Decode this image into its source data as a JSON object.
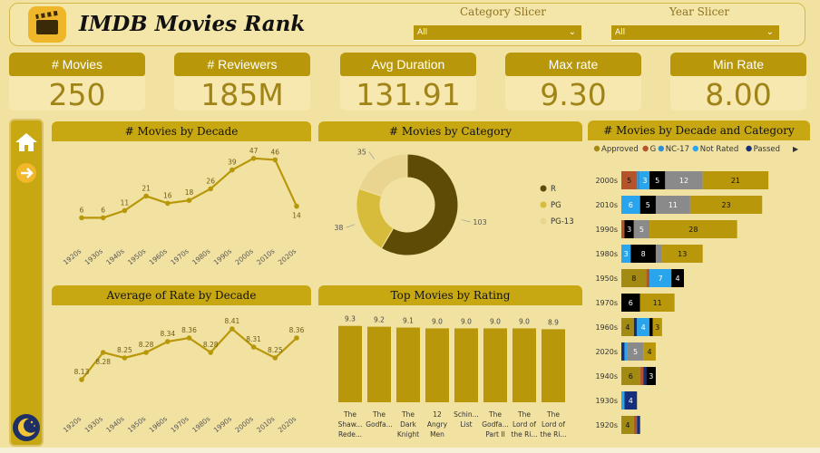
{
  "header": {
    "title": "IMDB Movies Rank"
  },
  "slicers": [
    {
      "label": "Category Slicer",
      "value": "All"
    },
    {
      "label": "Year Slicer",
      "value": "All"
    }
  ],
  "kpis": [
    {
      "label": "# Movies",
      "value": "250"
    },
    {
      "label": "# Reviewers",
      "value": "185M"
    },
    {
      "label": "Avg Duration",
      "value": "131.91"
    },
    {
      "label": "Max rate",
      "value": "9.30"
    },
    {
      "label": "Min Rate",
      "value": "8.00"
    }
  ],
  "colors": {
    "gold": "#b8980a",
    "dark": "#5c4a06",
    "light": "#e8d374"
  },
  "chart_data": [
    {
      "id": "movies_by_decade",
      "type": "line",
      "title": "# Movies by Decade",
      "categories": [
        "1920s",
        "1930s",
        "1940s",
        "1950s",
        "1960s",
        "1970s",
        "1980s",
        "1990s",
        "2000s",
        "2010s",
        "2020s"
      ],
      "values": [
        6,
        6,
        11,
        21,
        16,
        18,
        26,
        39,
        47,
        46,
        14
      ],
      "ylim": [
        0,
        50
      ]
    },
    {
      "id": "movies_by_category",
      "type": "pie",
      "title": "# Movies by Category",
      "labels": [
        "R",
        "PG",
        "PG-13"
      ],
      "values": [
        103,
        38,
        35
      ],
      "colors": [
        "#5e4b06",
        "#d6bc3a",
        "#ead590"
      ]
    },
    {
      "id": "avg_rate_by_decade",
      "type": "line",
      "title": "Average of Rate by Decade",
      "categories": [
        "1920s",
        "1930s",
        "1940s",
        "1950s",
        "1960s",
        "1970s",
        "1980s",
        "1990s",
        "2000s",
        "2010s",
        "2020s"
      ],
      "values": [
        8.13,
        8.28,
        8.25,
        8.28,
        8.34,
        8.36,
        8.28,
        8.41,
        8.31,
        8.25,
        8.36
      ],
      "ylim": [
        8.05,
        8.45
      ]
    },
    {
      "id": "top_movies_by_rating",
      "type": "bar",
      "title": "Top Movies by Rating",
      "categories": [
        "The Shaw... Rede...",
        "The Godfa...",
        "The Dark Knight",
        "12 Angry Men",
        "Schin... List",
        "The Godfa... Part II",
        "The Lord of the Ri...",
        "The Lord of the Ri..."
      ],
      "category_lines": [
        [
          "The",
          "Shaw...",
          "Rede..."
        ],
        [
          "The",
          "Godfa..."
        ],
        [
          "The",
          "Dark",
          "Knight"
        ],
        [
          "12",
          "Angry",
          "Men"
        ],
        [
          "Schin...",
          "List"
        ],
        [
          "The",
          "Godfa...",
          "Part II"
        ],
        [
          "The",
          "Lord of",
          "the Ri..."
        ],
        [
          "The",
          "Lord of",
          "the Ri..."
        ]
      ],
      "values": [
        9.3,
        9.2,
        9.1,
        9.0,
        9.0,
        9.0,
        9.0,
        8.9
      ],
      "value_labels": [
        "9.3",
        "9.2",
        "9.1",
        "9.0",
        "9.0",
        "9.0",
        "9.0",
        "8.9"
      ],
      "ylim": [
        0,
        9.6
      ]
    },
    {
      "id": "movies_by_decade_and_category",
      "type": "bar",
      "orientation": "horizontal",
      "stacked": true,
      "title": "# Movies by Decade and Category",
      "legend": [
        {
          "name": "Approved",
          "color": "#a38a12"
        },
        {
          "name": "G",
          "color": "#b5532b"
        },
        {
          "name": "NC-17",
          "color": "#2f8fd0"
        },
        {
          "name": "Not Rated",
          "color": "#29a5ee"
        },
        {
          "name": "Passed",
          "color": "#152f7c"
        }
      ],
      "categories": [
        "2000s",
        "2010s",
        "1990s",
        "1980s",
        "1950s",
        "1970s",
        "1960s",
        "2020s",
        "1940s",
        "1930s",
        "1920s"
      ],
      "rows": [
        {
          "decade": "2000s",
          "segments": [
            {
              "v": 5,
              "c": "#b5532b",
              "label": "5"
            },
            {
              "v": 1,
              "c": "#2f8fd0",
              "label": ""
            },
            {
              "v": 3,
              "c": "#29a5ee",
              "label": "3"
            },
            {
              "v": 5,
              "c": "#000000",
              "label": "5"
            },
            {
              "v": 12,
              "c": "#8a8a8a",
              "label": "12"
            },
            {
              "v": 21,
              "c": "#b8980a",
              "label": "21"
            }
          ]
        },
        {
          "decade": "2010s",
          "segments": [
            {
              "v": 6,
              "c": "#29a5ee",
              "label": "6"
            },
            {
              "v": 5,
              "c": "#000000",
              "label": "5"
            },
            {
              "v": 11,
              "c": "#8a8a8a",
              "label": "11"
            },
            {
              "v": 23,
              "c": "#b8980a",
              "label": "23"
            }
          ]
        },
        {
          "decade": "1990s",
          "segments": [
            {
              "v": 1,
              "c": "#b5532b",
              "label": ""
            },
            {
              "v": 3,
              "c": "#000000",
              "label": "3"
            },
            {
              "v": 5,
              "c": "#8a8a8a",
              "label": "5"
            },
            {
              "v": 28,
              "c": "#b8980a",
              "label": "28"
            }
          ]
        },
        {
          "decade": "1980s",
          "segments": [
            {
              "v": 3,
              "c": "#29a5ee",
              "label": "3"
            },
            {
              "v": 8,
              "c": "#000000",
              "label": "8"
            },
            {
              "v": 2,
              "c": "#8a8a8a",
              "label": ""
            },
            {
              "v": 13,
              "c": "#b8980a",
              "label": "13"
            }
          ]
        },
        {
          "decade": "1950s",
          "segments": [
            {
              "v": 8,
              "c": "#a38a12",
              "label": "8"
            },
            {
              "v": 1,
              "c": "#b5532b",
              "label": ""
            },
            {
              "v": 7,
              "c": "#29a5ee",
              "label": "7"
            },
            {
              "v": 4,
              "c": "#000000",
              "label": "4"
            }
          ]
        },
        {
          "decade": "1970s",
          "segments": [
            {
              "v": 6,
              "c": "#000000",
              "label": "6"
            },
            {
              "v": 11,
              "c": "#b8980a",
              "label": "11"
            }
          ]
        },
        {
          "decade": "1960s",
          "segments": [
            {
              "v": 4,
              "c": "#a38a12",
              "label": "4"
            },
            {
              "v": 1,
              "c": "#152f7c",
              "label": ""
            },
            {
              "v": 4,
              "c": "#29a5ee",
              "label": "4"
            },
            {
              "v": 1,
              "c": "#000000",
              "label": ""
            },
            {
              "v": 3,
              "c": "#b8980a",
              "label": "3"
            }
          ]
        },
        {
          "decade": "2020s",
          "segments": [
            {
              "v": 1,
              "c": "#152f7c",
              "label": ""
            },
            {
              "v": 1,
              "c": "#29a5ee",
              "label": ""
            },
            {
              "v": 5,
              "c": "#8a8a8a",
              "label": "5"
            },
            {
              "v": 4,
              "c": "#b8980a",
              "label": "4"
            }
          ]
        },
        {
          "decade": "1940s",
          "segments": [
            {
              "v": 6,
              "c": "#a38a12",
              "label": "6"
            },
            {
              "v": 1,
              "c": "#b5532b",
              "label": ""
            },
            {
              "v": 1,
              "c": "#152f7c",
              "label": ""
            },
            {
              "v": 3,
              "c": "#000000",
              "label": "3"
            }
          ]
        },
        {
          "decade": "1930s",
          "segments": [
            {
              "v": 1,
              "c": "#29a5ee",
              "label": ""
            },
            {
              "v": 4,
              "c": "#152f7c",
              "label": "4"
            }
          ]
        },
        {
          "decade": "1920s",
          "segments": [
            {
              "v": 4,
              "c": "#a38a12",
              "label": "4"
            },
            {
              "v": 1,
              "c": "#b5532b",
              "label": ""
            },
            {
              "v": 1,
              "c": "#152f7c",
              "label": ""
            }
          ]
        }
      ]
    }
  ]
}
